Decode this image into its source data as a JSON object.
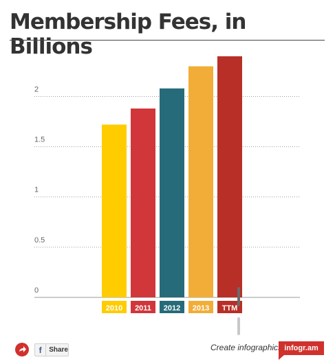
{
  "title": "Membership Fees, in Billions",
  "chart_data": {
    "type": "bar",
    "title": "Membership Fees, in Billions",
    "xlabel": "",
    "ylabel": "",
    "categories": [
      "2010",
      "2011",
      "2012",
      "2013",
      "TTM"
    ],
    "values": [
      1.72,
      1.88,
      2.08,
      2.3,
      2.4
    ],
    "colors": [
      "#ffcc00",
      "#d1363a",
      "#266b7a",
      "#f1ad37",
      "#b82f27"
    ],
    "yticks": [
      0,
      0.5,
      1,
      1.5,
      2
    ],
    "ytick_labels": [
      "0",
      "0.5",
      "1",
      "1.5",
      "2"
    ],
    "ylim": [
      0,
      2.55
    ],
    "grid": true,
    "legend": "none"
  },
  "footer": {
    "share_label": "Share",
    "facebook_glyph": "f",
    "create_text": "Create infographics",
    "badge_text": "infogr.am"
  }
}
